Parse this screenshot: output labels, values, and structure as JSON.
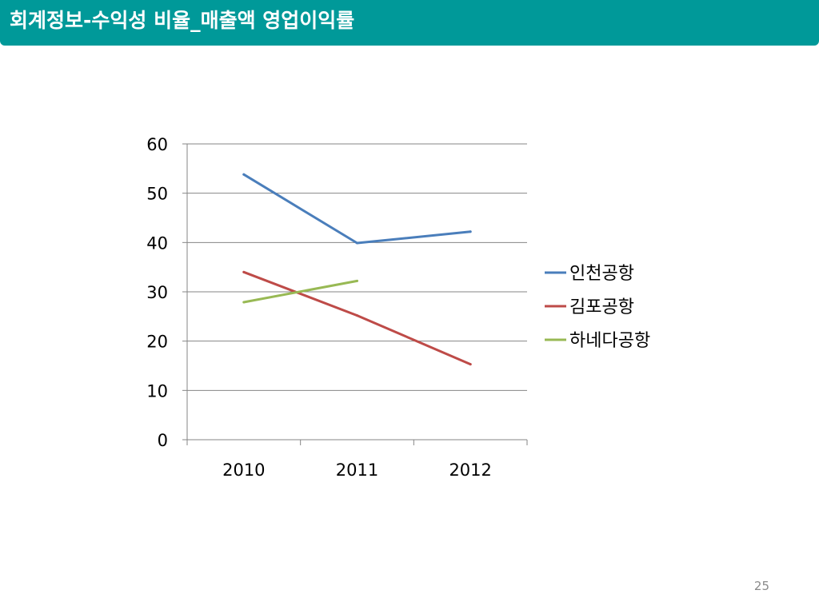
{
  "slide": {
    "title": "회계정보-수익성 비율_매출액 영업이익률",
    "page_number": "25"
  },
  "chart_data": {
    "type": "line",
    "title": "",
    "xlabel": "",
    "ylabel": "",
    "categories": [
      "2010",
      "2011",
      "2012"
    ],
    "ylim": [
      0,
      60
    ],
    "y_ticks": [
      "0",
      "10",
      "20",
      "30",
      "40",
      "50",
      "60"
    ],
    "y_tick_values": [
      0,
      10,
      20,
      30,
      40,
      50,
      60
    ],
    "grid": true,
    "legend_position": "right",
    "series": [
      {
        "name": "인천공항",
        "values": [
          53.8,
          39.9,
          42.2
        ],
        "color": "#4a7ebb"
      },
      {
        "name": "김포공항",
        "values": [
          34.0,
          25.2,
          15.3
        ],
        "color": "#be4b48"
      },
      {
        "name": "하네다공항",
        "values": [
          27.9,
          32.2,
          null
        ],
        "color": "#98b954"
      }
    ]
  }
}
